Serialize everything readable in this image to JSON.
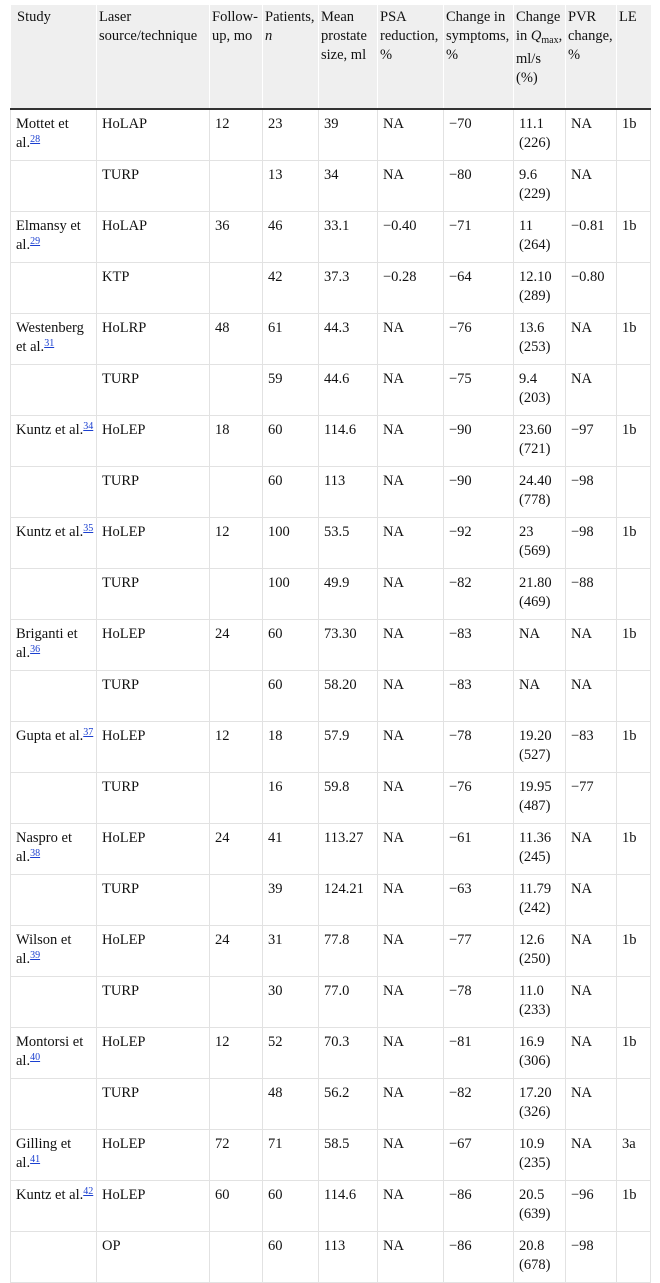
{
  "headers": {
    "study": "Study",
    "laser": "Laser source/technique",
    "followup": "Follow-up, mo",
    "patients_label": "Patients,",
    "patients_n": "n",
    "size": "Mean prostate size, ml",
    "psa": "PSA reduction, %",
    "symptoms": "Change in symptoms, %",
    "qmax_pre": "Change in",
    "qmax_q": "Q",
    "qmax_sub": "max",
    "qmax_post": ", ml/s (%)",
    "pvr": "PVR change, %",
    "le": "LE"
  },
  "rows": [
    {
      "study": "Mottet et al.",
      "ref": "28",
      "tech": "HoLAP",
      "fu": "12",
      "n": "23",
      "size": "39",
      "psa": "NA",
      "sym": "−70",
      "qmax": "11.1 (226)",
      "pvr": "NA",
      "le": "1b"
    },
    {
      "study": "",
      "ref": "",
      "tech": "TURP",
      "fu": "",
      "n": "13",
      "size": "34",
      "psa": "NA",
      "sym": "−80",
      "qmax": "9.6 (229)",
      "pvr": "NA",
      "le": ""
    },
    {
      "study": "Elmansy et al.",
      "ref": "29",
      "tech": "HoLAP",
      "fu": "36",
      "n": "46",
      "size": "33.1",
      "psa": "−0.40",
      "sym": "−71",
      "qmax": "11 (264)",
      "pvr": "−0.81",
      "le": "1b"
    },
    {
      "study": "",
      "ref": "",
      "tech": "KTP",
      "fu": "",
      "n": "42",
      "size": "37.3",
      "psa": "−0.28",
      "sym": "−64",
      "qmax": "12.10 (289)",
      "pvr": "−0.80",
      "le": ""
    },
    {
      "study": "Westenberg et al.",
      "ref": "31",
      "tech": "HoLRP",
      "fu": "48",
      "n": "61",
      "size": "44.3",
      "psa": "NA",
      "sym": "−76",
      "qmax": "13.6 (253)",
      "pvr": "NA",
      "le": "1b"
    },
    {
      "study": "",
      "ref": "",
      "tech": "TURP",
      "fu": "",
      "n": "59",
      "size": "44.6",
      "psa": "NA",
      "sym": "−75",
      "qmax": "9.4 (203)",
      "pvr": "NA",
      "le": ""
    },
    {
      "study": "Kuntz et al.",
      "ref": "34",
      "tech": "HoLEP",
      "fu": "18",
      "n": "60",
      "size": "114.6",
      "psa": "NA",
      "sym": "−90",
      "qmax": "23.60 (721)",
      "pvr": "−97",
      "le": "1b"
    },
    {
      "study": "",
      "ref": "",
      "tech": "TURP",
      "fu": "",
      "n": "60",
      "size": "113",
      "psa": "NA",
      "sym": "−90",
      "qmax": "24.40 (778)",
      "pvr": "−98",
      "le": ""
    },
    {
      "study": "Kuntz et al.",
      "ref": "35",
      "tech": "HoLEP",
      "fu": "12",
      "n": "100",
      "size": "53.5",
      "psa": "NA",
      "sym": "−92",
      "qmax": "23 (569)",
      "pvr": "−98",
      "le": "1b"
    },
    {
      "study": "",
      "ref": "",
      "tech": "TURP",
      "fu": "",
      "n": "100",
      "size": "49.9",
      "psa": "NA",
      "sym": "−82",
      "qmax": "21.80 (469)",
      "pvr": "−88",
      "le": ""
    },
    {
      "study": "Briganti et al.",
      "ref": "36",
      "tech": "HoLEP",
      "fu": "24",
      "n": "60",
      "size": "73.30",
      "psa": "NA",
      "sym": "−83",
      "qmax": "NA",
      "pvr": "NA",
      "le": "1b"
    },
    {
      "study": "",
      "ref": "",
      "tech": "TURP",
      "fu": "",
      "n": "60",
      "size": "58.20",
      "psa": "NA",
      "sym": "−83",
      "qmax": "NA",
      "pvr": "NA",
      "le": ""
    },
    {
      "study": "Gupta et al.",
      "ref": "37",
      "tech": "HoLEP",
      "fu": "12",
      "n": "18",
      "size": "57.9",
      "psa": "NA",
      "sym": "−78",
      "qmax": "19.20 (527)",
      "pvr": "−83",
      "le": "1b"
    },
    {
      "study": "",
      "ref": "",
      "tech": "TURP",
      "fu": "",
      "n": "16",
      "size": "59.8",
      "psa": "NA",
      "sym": "−76",
      "qmax": "19.95 (487)",
      "pvr": "−77",
      "le": ""
    },
    {
      "study": "Naspro et al.",
      "ref": "38",
      "tech": "HoLEP",
      "fu": "24",
      "n": "41",
      "size": "113.27",
      "psa": "NA",
      "sym": "−61",
      "qmax": "11.36 (245)",
      "pvr": "NA",
      "le": "1b"
    },
    {
      "study": "",
      "ref": "",
      "tech": "TURP",
      "fu": "",
      "n": "39",
      "size": "124.21",
      "psa": "NA",
      "sym": "−63",
      "qmax": "11.79 (242)",
      "pvr": "NA",
      "le": ""
    },
    {
      "study": "Wilson et al.",
      "ref": "39",
      "tech": "HoLEP",
      "fu": "24",
      "n": "31",
      "size": "77.8",
      "psa": "NA",
      "sym": "−77",
      "qmax": "12.6 (250)",
      "pvr": "NA",
      "le": "1b"
    },
    {
      "study": "",
      "ref": "",
      "tech": "TURP",
      "fu": "",
      "n": "30",
      "size": "77.0",
      "psa": "NA",
      "sym": "−78",
      "qmax": "11.0 (233)",
      "pvr": "NA",
      "le": ""
    },
    {
      "study": "Montorsi et al.",
      "ref": "40",
      "tech": "HoLEP",
      "fu": "12",
      "n": "52",
      "size": "70.3",
      "psa": "NA",
      "sym": "−81",
      "qmax": "16.9 (306)",
      "pvr": "NA",
      "le": "1b"
    },
    {
      "study": "",
      "ref": "",
      "tech": "TURP",
      "fu": "",
      "n": "48",
      "size": "56.2",
      "psa": "NA",
      "sym": "−82",
      "qmax": "17.20 (326)",
      "pvr": "NA",
      "le": ""
    },
    {
      "study": "Gilling et al.",
      "ref": "41",
      "tech": "HoLEP",
      "fu": "72",
      "n": "71",
      "size": "58.5",
      "psa": "NA",
      "sym": "−67",
      "qmax": "10.9 (235)",
      "pvr": "NA",
      "le": "3a"
    },
    {
      "study": "Kuntz et al.",
      "ref": "42",
      "tech": "HoLEP",
      "fu": "60",
      "n": "60",
      "size": "114.6",
      "psa": "NA",
      "sym": "−86",
      "qmax": "20.5 (639)",
      "pvr": "−96",
      "le": "1b"
    },
    {
      "study": "",
      "ref": "",
      "tech": "OP",
      "fu": "",
      "n": "60",
      "size": "113",
      "psa": "NA",
      "sym": "−86",
      "qmax": "20.8 (678)",
      "pvr": "−98",
      "le": ""
    }
  ]
}
